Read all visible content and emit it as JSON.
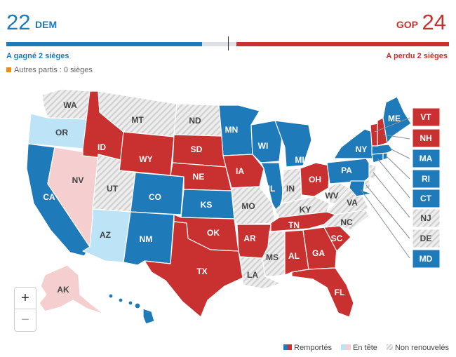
{
  "header": {
    "dem_count": "22",
    "dem_label": "DEM",
    "gop_count": "24",
    "gop_label": "GOP",
    "dem_status": "A gagné 2 sièges",
    "gop_status": "A perdu 2 sièges",
    "others": "Autres partis : 0 sièges"
  },
  "colors": {
    "dem": "#1e7ab8",
    "gop": "#c8312f",
    "dem_lead": "#bde3f6",
    "gop_lead": "#f5cfcf",
    "not_up": "#e6e6e6",
    "others": "#f28a1a"
  },
  "map": {
    "states": [
      {
        "code": "WA",
        "status": "not-up"
      },
      {
        "code": "OR",
        "status": "dem-lead"
      },
      {
        "code": "CA",
        "status": "dem"
      },
      {
        "code": "NV",
        "status": "gop-lead"
      },
      {
        "code": "ID",
        "status": "gop"
      },
      {
        "code": "MT",
        "status": "not-up"
      },
      {
        "code": "WY",
        "status": "gop"
      },
      {
        "code": "UT",
        "status": "not-up"
      },
      {
        "code": "AZ",
        "status": "dem-lead"
      },
      {
        "code": "CO",
        "status": "dem"
      },
      {
        "code": "NM",
        "status": "dem"
      },
      {
        "code": "ND",
        "status": "not-up"
      },
      {
        "code": "SD",
        "status": "gop"
      },
      {
        "code": "NE",
        "status": "gop"
      },
      {
        "code": "KS",
        "status": "dem"
      },
      {
        "code": "OK",
        "status": "gop"
      },
      {
        "code": "TX",
        "status": "gop"
      },
      {
        "code": "MN",
        "status": "dem"
      },
      {
        "code": "IA",
        "status": "gop"
      },
      {
        "code": "MO",
        "status": "not-up"
      },
      {
        "code": "AR",
        "status": "gop"
      },
      {
        "code": "LA",
        "status": "not-up"
      },
      {
        "code": "WI",
        "status": "dem"
      },
      {
        "code": "IL",
        "status": "dem"
      },
      {
        "code": "MI",
        "status": "dem"
      },
      {
        "code": "IN",
        "status": "not-up"
      },
      {
        "code": "OH",
        "status": "gop"
      },
      {
        "code": "KY",
        "status": "not-up"
      },
      {
        "code": "TN",
        "status": "gop"
      },
      {
        "code": "MS",
        "status": "not-up"
      },
      {
        "code": "AL",
        "status": "gop"
      },
      {
        "code": "GA",
        "status": "gop"
      },
      {
        "code": "FL",
        "status": "gop"
      },
      {
        "code": "SC",
        "status": "gop"
      },
      {
        "code": "NC",
        "status": "not-up"
      },
      {
        "code": "VA",
        "status": "not-up"
      },
      {
        "code": "WV",
        "status": "not-up"
      },
      {
        "code": "PA",
        "status": "dem"
      },
      {
        "code": "NY",
        "status": "dem"
      },
      {
        "code": "ME",
        "status": "dem"
      },
      {
        "code": "AK",
        "status": "gop-lead"
      },
      {
        "code": "HI",
        "status": "dem"
      },
      {
        "code": "VT",
        "status": "gop"
      },
      {
        "code": "NH",
        "status": "gop"
      },
      {
        "code": "MA",
        "status": "dem"
      },
      {
        "code": "RI",
        "status": "dem"
      },
      {
        "code": "CT",
        "status": "dem"
      },
      {
        "code": "NJ",
        "status": "not-up"
      },
      {
        "code": "DE",
        "status": "not-up"
      },
      {
        "code": "MD",
        "status": "dem"
      }
    ]
  },
  "zoom": {
    "in": "+",
    "out": "−"
  },
  "legend": {
    "won": "Remportés",
    "leading": "En tête",
    "not_up": "Non renouvelés"
  }
}
